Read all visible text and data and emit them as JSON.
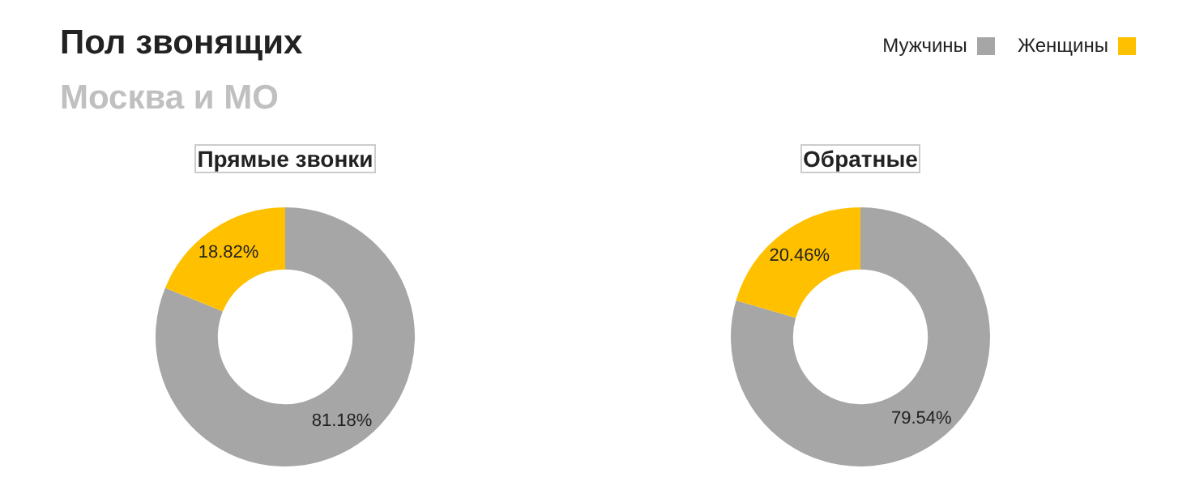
{
  "chart_data": [
    {
      "type": "other",
      "title": "Пол звонящих",
      "subtitle": "Москва и МО"
    },
    {
      "type": "donut",
      "title": "Прямые звонки",
      "categories": [
        "Мужчины",
        "Женщины"
      ],
      "values": [
        81.18,
        18.82
      ],
      "colors": [
        "#a6a6a6",
        "#ffc000"
      ],
      "value_labels": [
        "81.18%",
        "18.82%"
      ],
      "legend": "top right"
    },
    {
      "type": "donut",
      "title": "Обратные",
      "categories": [
        null,
        null
      ],
      "values": [
        79.54,
        20.46
      ],
      "colors": [
        "#a6a6a6",
        "#ffc000"
      ],
      "value_labels": [
        "79.54%",
        "20.46%"
      ]
    }
  ]
}
